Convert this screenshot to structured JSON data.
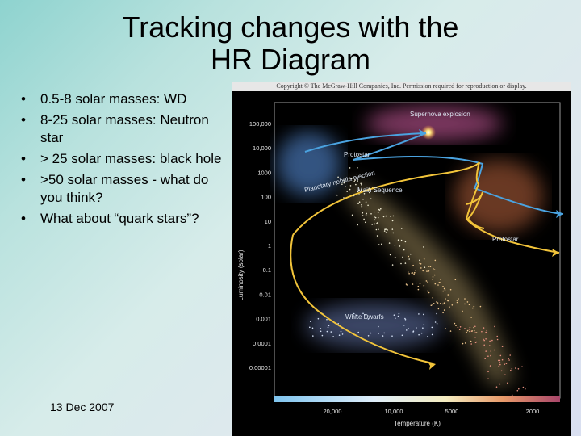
{
  "title": {
    "line1": "Tracking changes with the",
    "line2": "HR Diagram"
  },
  "bullets": [
    {
      "icon": "bullet-icon",
      "text": "0.5-8 solar masses: WD"
    },
    {
      "icon": "bullet-icon",
      "text": "8-25 solar masses: Neutron star"
    },
    {
      "icon": "bullet-icon",
      "text": "> 25 solar masses: black hole"
    },
    {
      "icon": "bullet-icon",
      "text": ">50 solar masses - what do you think?"
    },
    {
      "icon": "bullet-icon",
      "text": "What about “quark stars”?"
    }
  ],
  "footer": {
    "date": "13 Dec 2007"
  },
  "diagram": {
    "copyright": "Copyright © The McGraw-Hill Companies, Inc. Permission required for reproduction or display.",
    "y_axis_label": "Luminosity (solar)",
    "x_axis_label": "Temperature (K)",
    "y_ticks": [
      "100,000",
      "10,000",
      "1000",
      "100",
      "10",
      "1",
      "0.1",
      "0.01",
      "0.001",
      "0.0001",
      "0.00001"
    ],
    "x_ticks": [
      "20,000",
      "10,000",
      "5000",
      "2000"
    ],
    "labels": {
      "supernova": "Supernova explosion",
      "protostar_top": "Protostar",
      "planetary_nebula": "Planetary nebula ejection",
      "main_sequence": "Main Sequence",
      "protostar_right": "Protostar",
      "white_dwarfs": "White Dwarfs"
    },
    "colors": {
      "blue_track": "#4aa3e0",
      "yellow_track": "#f2c43a",
      "background": "#000000"
    }
  }
}
